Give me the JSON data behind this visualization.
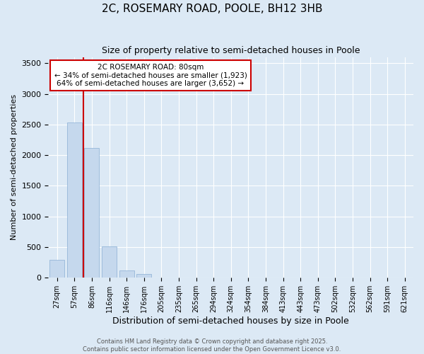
{
  "title": "2C, ROSEMARY ROAD, POOLE, BH12 3HB",
  "subtitle": "Size of property relative to semi-detached houses in Poole",
  "xlabel": "Distribution of semi-detached houses by size in Poole",
  "ylabel": "Number of semi-detached properties",
  "categories": [
    "27sqm",
    "57sqm",
    "86sqm",
    "116sqm",
    "146sqm",
    "176sqm",
    "205sqm",
    "235sqm",
    "265sqm",
    "294sqm",
    "324sqm",
    "354sqm",
    "384sqm",
    "413sqm",
    "443sqm",
    "473sqm",
    "502sqm",
    "532sqm",
    "562sqm",
    "591sqm",
    "621sqm"
  ],
  "values": [
    290,
    2530,
    2120,
    510,
    115,
    60,
    0,
    0,
    0,
    0,
    0,
    0,
    0,
    0,
    0,
    0,
    0,
    0,
    0,
    0,
    0
  ],
  "bar_color": "#c5d8ed",
  "bar_edge_color": "#8aaed4",
  "vline_color": "#cc0000",
  "annotation_title": "2C ROSEMARY ROAD: 80sqm",
  "annotation_line2": "← 34% of semi-detached houses are smaller (1,923)",
  "annotation_line3": "64% of semi-detached houses are larger (3,652) →",
  "annotation_box_color": "#cc0000",
  "annotation_fill": "#ffffff",
  "ylim": [
    0,
    3600
  ],
  "yticks": [
    0,
    500,
    1000,
    1500,
    2000,
    2500,
    3000,
    3500
  ],
  "background_color": "#dce9f5",
  "footer_line1": "Contains HM Land Registry data © Crown copyright and database right 2025.",
  "footer_line2": "Contains public sector information licensed under the Open Government Licence v3.0.",
  "title_fontsize": 11,
  "subtitle_fontsize": 9,
  "tick_fontsize": 7,
  "ylabel_fontsize": 8,
  "xlabel_fontsize": 9,
  "footer_fontsize": 6,
  "annotation_fontsize": 7.5
}
